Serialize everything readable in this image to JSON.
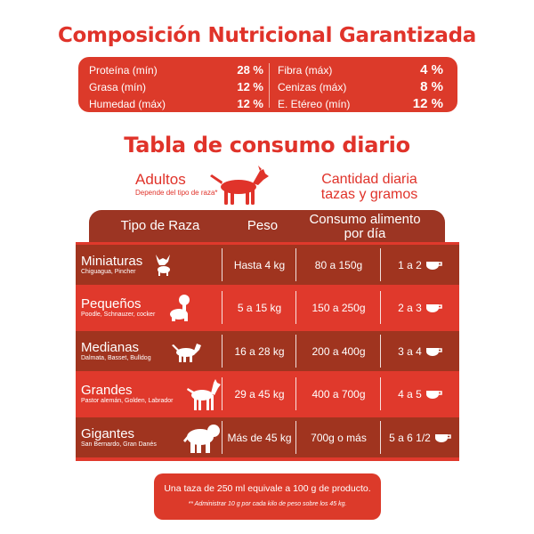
{
  "composition": {
    "title": "Composición Nutricional Garantizada",
    "left": [
      {
        "label": "Proteína (mín)",
        "value": "28 %"
      },
      {
        "label": "Grasa (mín)",
        "value": "12 %"
      },
      {
        "label": "Humedad (máx)",
        "value": "12 %"
      }
    ],
    "right": [
      {
        "label": "Fibra (máx)",
        "value": "4 %"
      },
      {
        "label": "Cenizas (máx)",
        "value": "8 %"
      },
      {
        "label": "E. Etéreo (mín)",
        "value": "12 %"
      }
    ]
  },
  "consumption": {
    "title": "Tabla de consumo diario",
    "adultos": "Adultos",
    "adultos_note": "Depende del tipo de raza*",
    "cantidad_line1": "Cantidad diaria",
    "cantidad_line2": "tazas y gramos",
    "headers": {
      "breed": "Tipo de Raza",
      "peso": "Peso",
      "consumo_line1": "Consumo alimento",
      "consumo_line2": "por día"
    },
    "rows": [
      {
        "breed": "Miniaturas",
        "examples": "Chiguagua, Pincher",
        "peso": "Hasta 4 kg",
        "consumo": "80 a 150g",
        "tazas": "1 a 2",
        "icon": "chihuahua-icon"
      },
      {
        "breed": "Pequeños",
        "examples": "Poodle, Schnauzer, cocker",
        "peso": "5 a 15 kg",
        "consumo": "150 a 250g",
        "tazas": "2 a 3",
        "icon": "poodle-icon"
      },
      {
        "breed": "Medianas",
        "examples": "Dalmata, Basset, Bulldog",
        "peso": "16 a 28 kg",
        "consumo": "200 a 400g",
        "tazas": "3 a 4",
        "icon": "medium-dog-icon"
      },
      {
        "breed": "Grandes",
        "examples": "Pastor alemán, Golden, Labrador",
        "peso": "29 a 45 kg",
        "consumo": "400 a 700g",
        "tazas": "4 a 5",
        "icon": "large-dog-icon"
      },
      {
        "breed": "Gigantes",
        "examples": "San Bernardo, Gran Danés",
        "peso": "Más de 45 kg",
        "consumo": "700g o más",
        "tazas": "5 a 6 1/2",
        "icon": "giant-dog-icon"
      }
    ],
    "note_line1": "Una taza de 250 ml equivale a 100 g de producto.",
    "note_line2": "** Administrar 10 g por cada kilo de peso sobre los 45 kg."
  },
  "colors": {
    "brand_red": "#e0332a",
    "dark_red": "#9c3523",
    "row_dark": "#a0341f",
    "row_light": "#e0392c"
  }
}
